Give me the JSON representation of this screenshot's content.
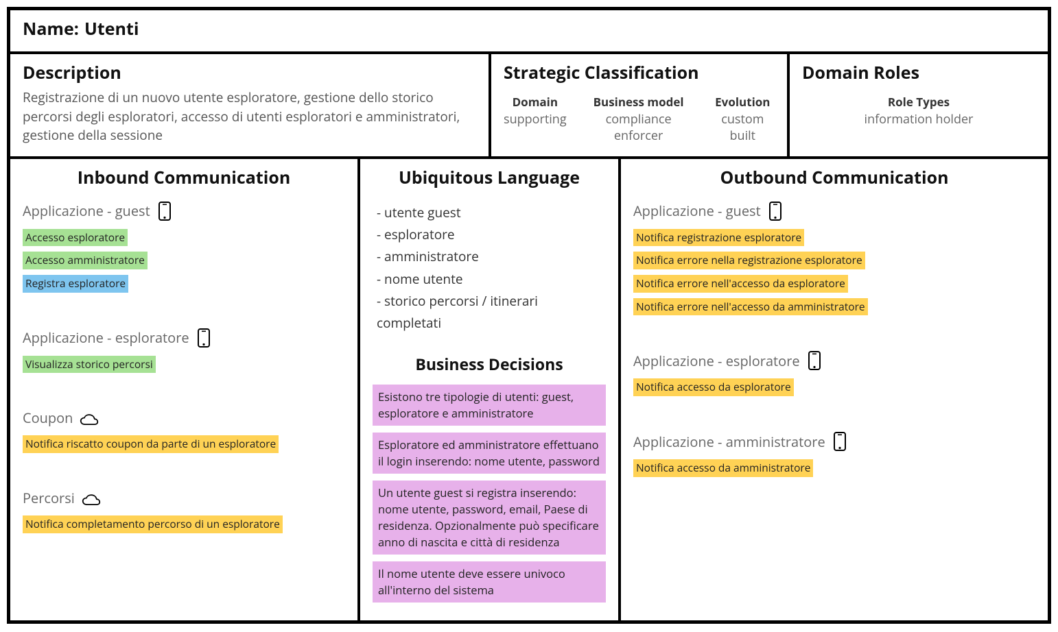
{
  "colors": {
    "tag_green": "#a6e194",
    "tag_blue": "#7ec5ef",
    "tag_yellow": "#ffd255",
    "decision_bg": "#e7b1ea",
    "border": "#000000",
    "text_primary": "#111111",
    "text_muted": "#666666"
  },
  "name_row": {
    "label": "Name:",
    "value": "Utenti"
  },
  "description": {
    "title": "Description",
    "text": "Registrazione di un nuovo utente esploratore, gestione dello storico percorsi degli esploratori, accesso di utenti esploratori e amministratori, gestione della sessione"
  },
  "strategic": {
    "title": "Strategic Classification",
    "cols": [
      {
        "header": "Domain",
        "value": "supporting"
      },
      {
        "header": "Business model",
        "value": "compliance enforcer"
      },
      {
        "header": "Evolution",
        "value": "custom built"
      }
    ]
  },
  "roles": {
    "title": "Domain Roles",
    "header": "Role Types",
    "value": "information holder"
  },
  "inbound": {
    "title": "Inbound Communication",
    "groups": [
      {
        "label": "Applicazione - guest",
        "icon": "phone",
        "items": [
          {
            "text": "Accesso esploratore",
            "color": "green"
          },
          {
            "text": "Accesso amministratore",
            "color": "green"
          },
          {
            "text": "Registra esploratore",
            "color": "blue"
          }
        ]
      },
      {
        "label": "Applicazione - esploratore",
        "icon": "phone",
        "items": [
          {
            "text": "Visualizza storico percorsi",
            "color": "green"
          }
        ]
      },
      {
        "label": "Coupon",
        "icon": "cloud",
        "items": [
          {
            "text": "Notifica riscatto coupon da parte di un esploratore",
            "color": "yellow"
          }
        ]
      },
      {
        "label": "Percorsi",
        "icon": "cloud",
        "items": [
          {
            "text": "Notifica completamento percorso di un esploratore",
            "color": "yellow"
          }
        ]
      }
    ]
  },
  "ubiquitous": {
    "title": "Ubiquitous Language",
    "items": [
      "- utente guest",
      "- esploratore",
      "- amministratore",
      "- nome utente",
      "- storico percorsi / itinerari completati"
    ]
  },
  "decisions": {
    "title": "Business Decisions",
    "items": [
      "Esistono tre tipologie di utenti: guest, esploratore e amministratore",
      "Esploratore ed amministratore effettuano il login inserendo: nome utente, password",
      "Un utente guest si registra inserendo: nome utente, password, email, Paese di residenza. Opzionalmente può specificare anno di nascita e città di residenza",
      "Il nome utente deve essere univoco all'interno del sistema"
    ]
  },
  "outbound": {
    "title": "Outbound Communication",
    "groups": [
      {
        "label": "Applicazione - guest",
        "icon": "phone",
        "items": [
          {
            "text": "Notifica registrazione esploratore",
            "color": "yellow"
          },
          {
            "text": "Notifica errore nella registrazione esploratore",
            "color": "yellow"
          },
          {
            "text": "Notifica errore nell'accesso da esploratore",
            "color": "yellow"
          },
          {
            "text": "Notifica errore nell'accesso da amministratore",
            "color": "yellow"
          }
        ]
      },
      {
        "label": "Applicazione - esploratore",
        "icon": "phone",
        "items": [
          {
            "text": "Notifica accesso da esploratore",
            "color": "yellow"
          }
        ]
      },
      {
        "label": "Applicazione - amministratore",
        "icon": "phone",
        "items": [
          {
            "text": "Notifica accesso da amministratore",
            "color": "yellow"
          }
        ]
      }
    ]
  }
}
